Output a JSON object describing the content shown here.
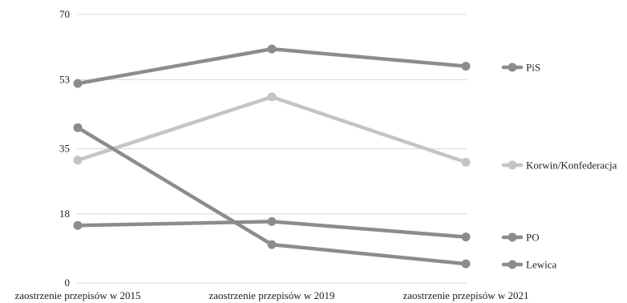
{
  "chart_data": {
    "type": "line",
    "title": "",
    "xlabel": "",
    "ylabel": "",
    "categories": [
      "zaostrzenie przepisów w  2015",
      "zaostrzenie przepisów w 2019",
      "zaostrzenie przepisów w 2021"
    ],
    "y_ticks": [
      "0",
      "18",
      "35",
      "53",
      "70"
    ],
    "ylim": [
      0,
      70
    ],
    "grid": true,
    "legend_position": "right",
    "series": [
      {
        "name": "PiS",
        "values": [
          52,
          61,
          56.5
        ],
        "color": "#8c8c8c"
      },
      {
        "name": "Korwin/Konfederacja",
        "values": [
          32,
          48.5,
          31.5
        ],
        "color": "#c4c4c4"
      },
      {
        "name": "PO",
        "values": [
          15,
          16,
          12
        ],
        "color": "#8c8c8c"
      },
      {
        "name": "Lewica",
        "values": [
          40.5,
          10,
          5
        ],
        "color": "#8c8c8c"
      }
    ]
  }
}
